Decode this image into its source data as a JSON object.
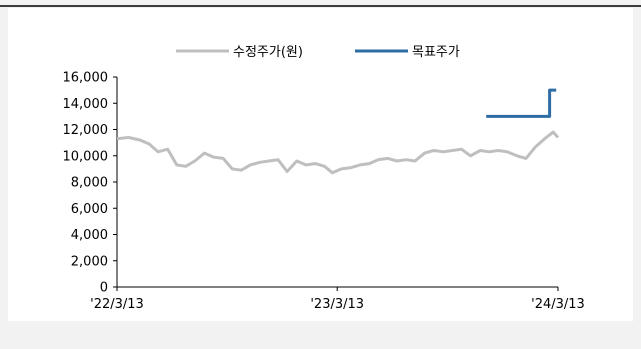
{
  "colors": {
    "page_background": "#f2f2f2",
    "plot_background": "#ffffff",
    "top_border": "#000000",
    "axis": "#000000"
  },
  "chart_data": {
    "type": "line",
    "title": "",
    "xlabel": "",
    "ylabel": "",
    "ylim": [
      0,
      16000
    ],
    "yticks": [
      0,
      2000,
      4000,
      6000,
      8000,
      10000,
      12000,
      14000,
      16000
    ],
    "ytick_labels": [
      "0",
      "2,000",
      "4,000",
      "6,000",
      "8,000",
      "10,000",
      "12,000",
      "14,000",
      "16,000"
    ],
    "xlim": [
      "2022-03-13",
      "2024-03-13"
    ],
    "xticks": [
      "2022-03-13",
      "2023-03-13",
      "2024-03-13"
    ],
    "xtick_labels": [
      "'22/3/13",
      "'23/3/13",
      "'24/3/13"
    ],
    "grid": false,
    "legend_position": "top-center",
    "series": [
      {
        "name": "수정주가(원)",
        "color": "#bfbfbf",
        "x": [
          "2022-03-13",
          "2022-04-01",
          "2022-04-20",
          "2022-05-05",
          "2022-05-20",
          "2022-06-05",
          "2022-06-20",
          "2022-07-05",
          "2022-07-20",
          "2022-08-05",
          "2022-08-20",
          "2022-09-05",
          "2022-09-20",
          "2022-10-05",
          "2022-10-20",
          "2022-11-05",
          "2022-11-20",
          "2022-12-05",
          "2022-12-20",
          "2023-01-05",
          "2023-01-20",
          "2023-02-05",
          "2023-02-20",
          "2023-03-05",
          "2023-03-20",
          "2023-04-05",
          "2023-04-20",
          "2023-05-05",
          "2023-05-20",
          "2023-06-05",
          "2023-06-20",
          "2023-07-05",
          "2023-07-20",
          "2023-08-05",
          "2023-08-20",
          "2023-09-05",
          "2023-09-20",
          "2023-10-05",
          "2023-10-20",
          "2023-11-05",
          "2023-11-20",
          "2023-12-05",
          "2023-12-20",
          "2024-01-05",
          "2024-01-20",
          "2024-02-05",
          "2024-02-20",
          "2024-03-05",
          "2024-03-13"
        ],
        "values": [
          11300,
          11400,
          11200,
          10900,
          10300,
          10500,
          9300,
          9200,
          9600,
          10200,
          9900,
          9800,
          9000,
          8900,
          9300,
          9500,
          9600,
          9700,
          8800,
          9600,
          9300,
          9400,
          9200,
          8700,
          9000,
          9100,
          9300,
          9400,
          9700,
          9800,
          9600,
          9700,
          9600,
          10200,
          10400,
          10300,
          10400,
          10500,
          10000,
          10400,
          10300,
          10400,
          10300,
          10000,
          9800,
          10700,
          11300,
          11800,
          11400
        ]
      },
      {
        "name": "목표주가",
        "color": "#2e6da4",
        "x": [
          "2023-11-15",
          "2024-02-28",
          "2024-02-28",
          "2024-03-10"
        ],
        "values": [
          13000,
          13000,
          15000,
          15000
        ]
      }
    ]
  }
}
